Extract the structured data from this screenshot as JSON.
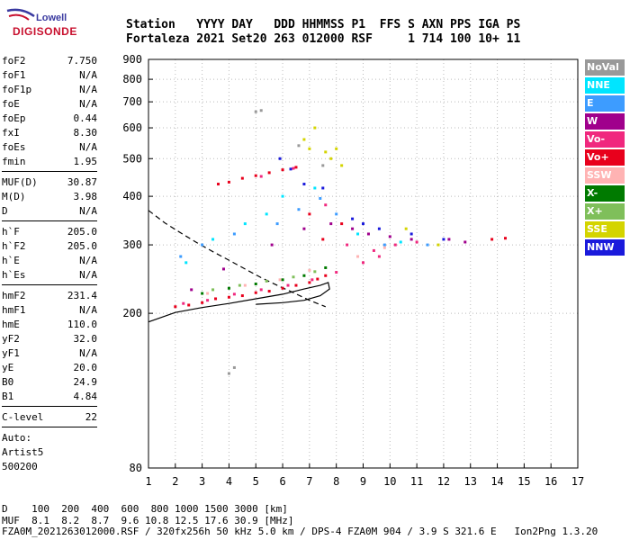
{
  "logo": {
    "top": "Lowell",
    "bottom": "DIGISONDE"
  },
  "header": {
    "line1": "Station   YYYY DAY   DDD HHMMSS P1  FFS S AXN PPS IGA PS",
    "line2": "Fortaleza 2021 Set20 263 012000 RSF     1 714 100 10+ 11"
  },
  "params": {
    "group1": [
      {
        "k": "foF2",
        "v": "7.750"
      },
      {
        "k": "foF1",
        "v": "N/A"
      },
      {
        "k": "foF1p",
        "v": "N/A"
      },
      {
        "k": "foE",
        "v": "N/A"
      },
      {
        "k": "foEp",
        "v": "0.44"
      },
      {
        "k": "fxI",
        "v": "8.30"
      },
      {
        "k": "foEs",
        "v": "N/A"
      },
      {
        "k": "fmin",
        "v": "1.95"
      }
    ],
    "group2": [
      {
        "k": "MUF(D)",
        "v": "30.87"
      },
      {
        "k": "M(D)",
        "v": "3.98"
      },
      {
        "k": "D",
        "v": "N/A"
      }
    ],
    "group3": [
      {
        "k": "h`F",
        "v": "205.0"
      },
      {
        "k": "h`F2",
        "v": "205.0"
      },
      {
        "k": "h`E",
        "v": "N/A"
      },
      {
        "k": "h`Es",
        "v": "N/A"
      }
    ],
    "group4": [
      {
        "k": "hmF2",
        "v": "231.4"
      },
      {
        "k": "hmF1",
        "v": "N/A"
      },
      {
        "k": "hmE",
        "v": "110.0"
      },
      {
        "k": "yF2",
        "v": "32.0"
      },
      {
        "k": "yF1",
        "v": "N/A"
      },
      {
        "k": "yE",
        "v": "20.0"
      },
      {
        "k": "B0",
        "v": "24.9"
      },
      {
        "k": "B1",
        "v": "4.84"
      }
    ],
    "group5": [
      {
        "k": "C-level",
        "v": "22"
      }
    ],
    "auto": [
      "Auto:",
      "Artist5",
      "500200"
    ]
  },
  "legend": [
    {
      "label": "NoVal",
      "color": "#999999"
    },
    {
      "label": "NNE",
      "color": "#00e5ff"
    },
    {
      "label": "E",
      "color": "#3d9cff"
    },
    {
      "label": "W",
      "color": "#a0008c"
    },
    {
      "label": "Vo-",
      "color": "#f0287e"
    },
    {
      "label": "Vo+",
      "color": "#e8001c"
    },
    {
      "label": "SSW",
      "color": "#ffb3b3"
    },
    {
      "label": "X-",
      "color": "#007a00"
    },
    {
      "label": "X+",
      "color": "#7fbf5a"
    },
    {
      "label": "SSE",
      "color": "#d4d400"
    },
    {
      "label": "NNW",
      "color": "#1a1adc"
    }
  ],
  "footer": {
    "line1": "D    100  200  400  600  800 1000 1500 3000 [km]",
    "line2": "MUF  8.1  8.2  8.7  9.6 10.8 12.5 17.6 30.9 [MHz]",
    "line3": "FZA0M_2021263012000.RSF / 320fx256h 50 kHz 5.0 km / DPS-4 FZA0M 904 / 3.9 S 321.6 E   Ion2Png 1.3.20"
  },
  "chart_data": {
    "type": "scatter",
    "title": "",
    "xlabel": "",
    "ylabel": "",
    "xlim": [
      1,
      17
    ],
    "ylim": [
      80,
      900
    ],
    "y_scale": "log",
    "x_ticks": [
      1,
      2,
      3,
      4,
      5,
      6,
      7,
      8,
      9,
      10,
      11,
      12,
      13,
      14,
      15,
      16,
      17
    ],
    "y_ticks": [
      80,
      200,
      300,
      400,
      500,
      600,
      700,
      800,
      900
    ],
    "grid": "dotted",
    "series": [
      {
        "name": "Vo+",
        "points": [
          [
            2.0,
            208
          ],
          [
            2.5,
            210
          ],
          [
            3.0,
            213
          ],
          [
            3.5,
            218
          ],
          [
            4.0,
            220
          ],
          [
            4.5,
            222
          ],
          [
            5.0,
            226
          ],
          [
            5.5,
            228
          ],
          [
            6.0,
            232
          ],
          [
            6.5,
            236
          ],
          [
            7.0,
            240
          ],
          [
            7.3,
            245
          ],
          [
            7.6,
            250
          ],
          [
            3.6,
            430
          ],
          [
            4.0,
            435
          ],
          [
            4.5,
            445
          ],
          [
            5.0,
            452
          ],
          [
            5.5,
            460
          ],
          [
            6.0,
            468
          ],
          [
            6.5,
            475
          ],
          [
            7.0,
            360
          ],
          [
            7.5,
            310
          ],
          [
            8.2,
            340
          ],
          [
            13.8,
            310
          ],
          [
            14.3,
            312
          ]
        ]
      },
      {
        "name": "Vo-",
        "points": [
          [
            2.3,
            212
          ],
          [
            3.2,
            216
          ],
          [
            4.2,
            224
          ],
          [
            5.2,
            230
          ],
          [
            6.2,
            236
          ],
          [
            7.1,
            244
          ],
          [
            8.0,
            255
          ],
          [
            9.0,
            270
          ],
          [
            9.6,
            280
          ],
          [
            10.2,
            300
          ],
          [
            5.2,
            450
          ],
          [
            6.4,
            472
          ],
          [
            7.6,
            380
          ],
          [
            8.4,
            300
          ],
          [
            9.4,
            290
          ],
          [
            11.0,
            305
          ]
        ]
      },
      {
        "name": "W",
        "points": [
          [
            2.6,
            230
          ],
          [
            3.8,
            260
          ],
          [
            5.6,
            300
          ],
          [
            6.8,
            330
          ],
          [
            7.8,
            340
          ],
          [
            8.6,
            330
          ],
          [
            9.2,
            320
          ],
          [
            10.0,
            315
          ],
          [
            10.8,
            310
          ],
          [
            12.2,
            310
          ],
          [
            12.8,
            305
          ]
        ]
      },
      {
        "name": "E",
        "points": [
          [
            2.2,
            280
          ],
          [
            3.0,
            300
          ],
          [
            4.2,
            320
          ],
          [
            5.8,
            340
          ],
          [
            6.6,
            370
          ],
          [
            7.4,
            395
          ],
          [
            8.0,
            360
          ],
          [
            9.8,
            300
          ],
          [
            11.4,
            300
          ]
        ]
      },
      {
        "name": "NNE",
        "points": [
          [
            2.4,
            270
          ],
          [
            3.4,
            310
          ],
          [
            4.6,
            340
          ],
          [
            5.4,
            360
          ],
          [
            6.0,
            400
          ],
          [
            7.2,
            420
          ],
          [
            8.8,
            320
          ],
          [
            10.4,
            305
          ]
        ]
      },
      {
        "name": "X-",
        "points": [
          [
            3.0,
            225
          ],
          [
            4.0,
            232
          ],
          [
            5.0,
            238
          ],
          [
            6.0,
            244
          ],
          [
            6.8,
            250
          ],
          [
            7.6,
            262
          ]
        ]
      },
      {
        "name": "X+",
        "points": [
          [
            3.4,
            230
          ],
          [
            4.4,
            236
          ],
          [
            5.4,
            242
          ],
          [
            6.4,
            248
          ],
          [
            7.2,
            256
          ]
        ]
      },
      {
        "name": "SSE",
        "points": [
          [
            6.8,
            560
          ],
          [
            7.0,
            530
          ],
          [
            7.2,
            600
          ],
          [
            7.6,
            520
          ],
          [
            7.8,
            500
          ],
          [
            8.0,
            530
          ],
          [
            8.2,
            480
          ],
          [
            10.6,
            330
          ],
          [
            11.8,
            300
          ]
        ]
      },
      {
        "name": "NNW",
        "points": [
          [
            5.9,
            500
          ],
          [
            6.3,
            470
          ],
          [
            6.8,
            430
          ],
          [
            7.5,
            420
          ],
          [
            8.6,
            350
          ],
          [
            9.0,
            340
          ],
          [
            9.6,
            330
          ],
          [
            10.8,
            320
          ],
          [
            12.0,
            310
          ]
        ]
      },
      {
        "name": "SSW",
        "points": [
          [
            3.2,
            225
          ],
          [
            4.6,
            236
          ],
          [
            5.9,
            244
          ],
          [
            7.0,
            258
          ],
          [
            8.8,
            280
          ],
          [
            9.8,
            295
          ]
        ]
      },
      {
        "name": "NoVal",
        "points": [
          [
            4.0,
            140
          ],
          [
            4.2,
            145
          ],
          [
            5.0,
            660
          ],
          [
            5.2,
            665
          ],
          [
            6.6,
            540
          ],
          [
            7.5,
            480
          ]
        ]
      }
    ],
    "profile_solid": [
      [
        1.0,
        190
      ],
      [
        2.0,
        201
      ],
      [
        3.0,
        207
      ],
      [
        4.0,
        212
      ],
      [
        5.0,
        218
      ],
      [
        6.0,
        224
      ],
      [
        6.8,
        231
      ],
      [
        7.4,
        236
      ],
      [
        7.7,
        240
      ],
      [
        7.75,
        231
      ],
      [
        7.4,
        222
      ],
      [
        6.8,
        216
      ],
      [
        6.0,
        213
      ],
      [
        5.0,
        211
      ]
    ],
    "profile_dashed": [
      [
        1.0,
        368
      ],
      [
        1.6,
        342
      ],
      [
        2.2,
        322
      ],
      [
        2.8,
        304
      ],
      [
        3.4,
        288
      ],
      [
        4.0,
        274
      ],
      [
        4.6,
        260
      ],
      [
        5.2,
        247
      ],
      [
        5.8,
        236
      ],
      [
        6.4,
        226
      ],
      [
        7.0,
        216
      ],
      [
        7.6,
        208
      ]
    ]
  }
}
